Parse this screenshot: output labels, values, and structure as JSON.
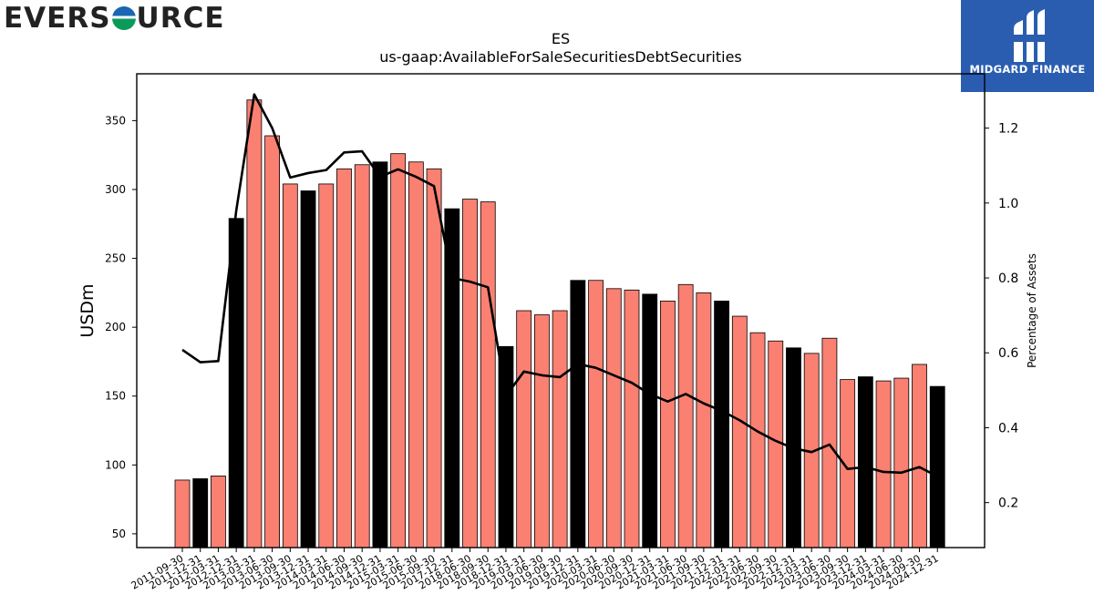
{
  "logos": {
    "left": {
      "before": "EVERS",
      "after": "URCE"
    },
    "right": {
      "text": "MIDGARD FINANCE"
    }
  },
  "chart_data": {
    "type": "bar",
    "title": "ES",
    "subtitle": "us-gaap:AvailableForSaleSecuritiesDebtSecurities",
    "ylabel": "USDm",
    "y2label": "Percentage of Assets",
    "ylim": [
      40,
      384
    ],
    "y2lim": [
      0.08,
      1.345
    ],
    "yticks": [
      50,
      100,
      150,
      200,
      250,
      300,
      350
    ],
    "y2ticks": [
      "0.2",
      "0.4",
      "0.6",
      "0.8",
      "1.0",
      "1.2"
    ],
    "colors": {
      "bar": "#fa8072",
      "bar_q4": "#000000",
      "line": "#000000"
    },
    "categories": [
      "2011-09-30",
      "2011-12-31",
      "2012-03-31",
      "2012-12-31",
      "2013-03-31",
      "2013-06-30",
      "2013-09-30",
      "2013-12-31",
      "2014-03-31",
      "2014-06-30",
      "2014-09-30",
      "2014-12-31",
      "2015-03-31",
      "2015-06-30",
      "2015-09-30",
      "2017-12-31",
      "2018-06-30",
      "2018-09-30",
      "2018-12-31",
      "2019-03-31",
      "2019-06-30",
      "2019-09-30",
      "2019-12-31",
      "2020-03-31",
      "2020-06-30",
      "2020-09-30",
      "2020-12-31",
      "2021-03-31",
      "2021-06-30",
      "2021-09-30",
      "2021-12-31",
      "2022-03-31",
      "2022-06-30",
      "2022-09-30",
      "2022-12-31",
      "2023-03-31",
      "2023-06-30",
      "2023-09-30",
      "2023-12-31",
      "2024-03-31",
      "2024-06-30",
      "2024-09-30",
      "2024-12-31"
    ],
    "series": [
      {
        "type": "bar",
        "values": [
          89,
          90,
          92,
          279,
          365,
          339,
          304,
          299,
          304,
          315,
          318,
          320,
          326,
          320,
          315,
          286,
          293,
          291,
          186,
          212,
          209,
          212,
          234,
          234,
          228,
          227,
          224,
          219,
          231,
          225,
          219,
          208,
          196,
          190,
          185,
          181,
          192,
          162,
          164,
          161,
          163,
          173,
          157
        ]
      },
      {
        "type": "line",
        "axis": "right",
        "values": [
          0.608,
          0.575,
          0.578,
          0.98,
          1.29,
          1.2,
          1.068,
          1.08,
          1.088,
          1.135,
          1.138,
          1.07,
          1.09,
          1.07,
          1.045,
          0.8,
          0.79,
          0.775,
          0.485,
          0.55,
          0.54,
          0.535,
          0.57,
          0.56,
          0.54,
          0.52,
          0.49,
          0.47,
          0.49,
          0.465,
          0.445,
          0.42,
          0.39,
          0.365,
          0.345,
          0.335,
          0.355,
          0.29,
          0.295,
          0.282,
          0.28,
          0.295,
          0.27
        ]
      }
    ]
  }
}
